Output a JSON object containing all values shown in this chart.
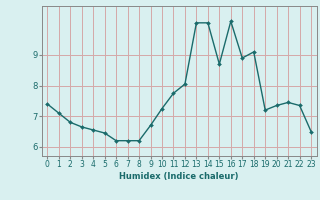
{
  "x": [
    0,
    1,
    2,
    3,
    4,
    5,
    6,
    7,
    8,
    9,
    10,
    11,
    12,
    13,
    14,
    15,
    16,
    17,
    18,
    19,
    20,
    21,
    22,
    23
  ],
  "y": [
    7.4,
    7.1,
    6.8,
    6.65,
    6.55,
    6.45,
    6.2,
    6.2,
    6.2,
    6.7,
    7.25,
    7.75,
    8.05,
    10.05,
    10.05,
    8.7,
    10.1,
    8.9,
    9.1,
    7.2,
    7.35,
    7.45,
    7.35,
    6.5
  ],
  "line_color": "#1a6b6b",
  "marker": "D",
  "marker_size": 2.0,
  "line_width": 1.0,
  "xlabel": "Humidex (Indice chaleur)",
  "ylim": [
    5.7,
    10.6
  ],
  "xlim": [
    -0.5,
    23.5
  ],
  "yticks": [
    6,
    7,
    8,
    9
  ],
  "xticks": [
    0,
    1,
    2,
    3,
    4,
    5,
    6,
    7,
    8,
    9,
    10,
    11,
    12,
    13,
    14,
    15,
    16,
    17,
    18,
    19,
    20,
    21,
    22,
    23
  ],
  "grid_color": "#d4a8a8",
  "bg_color": "#d9f0f0",
  "axis_color": "#888888",
  "text_color": "#1a6b6b",
  "xlabel_fontsize": 6.0,
  "tick_fontsize": 5.5
}
